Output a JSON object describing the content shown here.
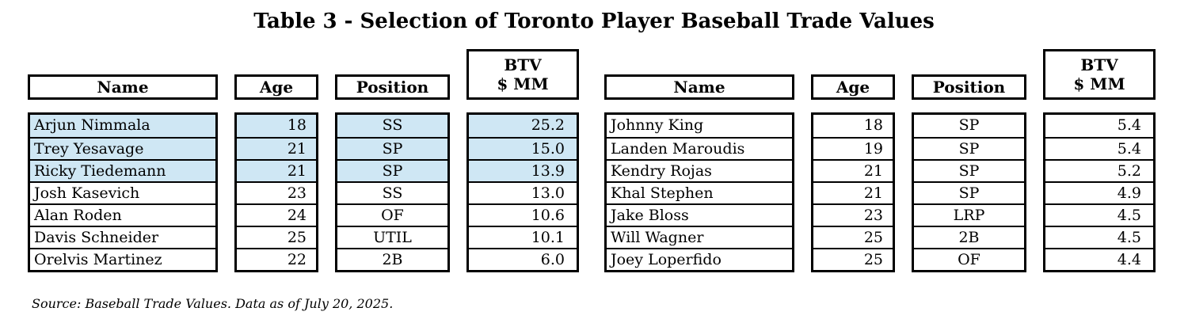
{
  "title": "Table 3 - Selection of Toronto Player Baseball Trade Values",
  "source_note": "Source: Baseball Trade Values. Data as of July 20, 2025.",
  "colors": {
    "highlight_blue": "#cfe7f4",
    "border": "#000000",
    "background": "#ffffff"
  },
  "header": {
    "name": "Name",
    "age": "Age",
    "position": "Position",
    "btv_line1": "BTV",
    "btv_line2": "$ MM"
  },
  "chart_data": {
    "type": "table",
    "title": "Table 3 - Selection of Toronto Player Baseball Trade Values",
    "columns": [
      "Name",
      "Age",
      "Position",
      "BTV $ MM"
    ],
    "panels": [
      {
        "position": "left",
        "rows": [
          {
            "name": "Arjun Nimmala",
            "age": 18,
            "position": "SS",
            "btv_mm": 25.2,
            "highlighted": true
          },
          {
            "name": "Trey Yesavage",
            "age": 21,
            "position": "SP",
            "btv_mm": 15.0,
            "highlighted": true
          },
          {
            "name": "Ricky Tiedemann",
            "age": 21,
            "position": "SP",
            "btv_mm": 13.9,
            "highlighted": true
          },
          {
            "name": "Josh Kasevich",
            "age": 23,
            "position": "SS",
            "btv_mm": 13.0,
            "highlighted": false
          },
          {
            "name": "Alan Roden",
            "age": 24,
            "position": "OF",
            "btv_mm": 10.6,
            "highlighted": false
          },
          {
            "name": "Davis Schneider",
            "age": 25,
            "position": "UTIL",
            "btv_mm": 10.1,
            "highlighted": false
          },
          {
            "name": "Orelvis Martinez",
            "age": 22,
            "position": "2B",
            "btv_mm": 6.0,
            "highlighted": false
          }
        ]
      },
      {
        "position": "right",
        "rows": [
          {
            "name": "Johnny King",
            "age": 18,
            "position": "SP",
            "btv_mm": 5.4,
            "highlighted": false
          },
          {
            "name": "Landen Maroudis",
            "age": 19,
            "position": "SP",
            "btv_mm": 5.4,
            "highlighted": false
          },
          {
            "name": "Kendry Rojas",
            "age": 21,
            "position": "SP",
            "btv_mm": 5.2,
            "highlighted": false
          },
          {
            "name": "Khal Stephen",
            "age": 21,
            "position": "SP",
            "btv_mm": 4.9,
            "highlighted": false
          },
          {
            "name": "Jake Bloss",
            "age": 23,
            "position": "LRP",
            "btv_mm": 4.5,
            "highlighted": false
          },
          {
            "name": "Will Wagner",
            "age": 25,
            "position": "2B",
            "btv_mm": 4.5,
            "highlighted": false
          },
          {
            "name": "Joey Loperfido",
            "age": 25,
            "position": "OF",
            "btv_mm": 4.4,
            "highlighted": false
          }
        ]
      }
    ],
    "source": "Source: Baseball Trade Values. Data as of July 20, 2025."
  }
}
